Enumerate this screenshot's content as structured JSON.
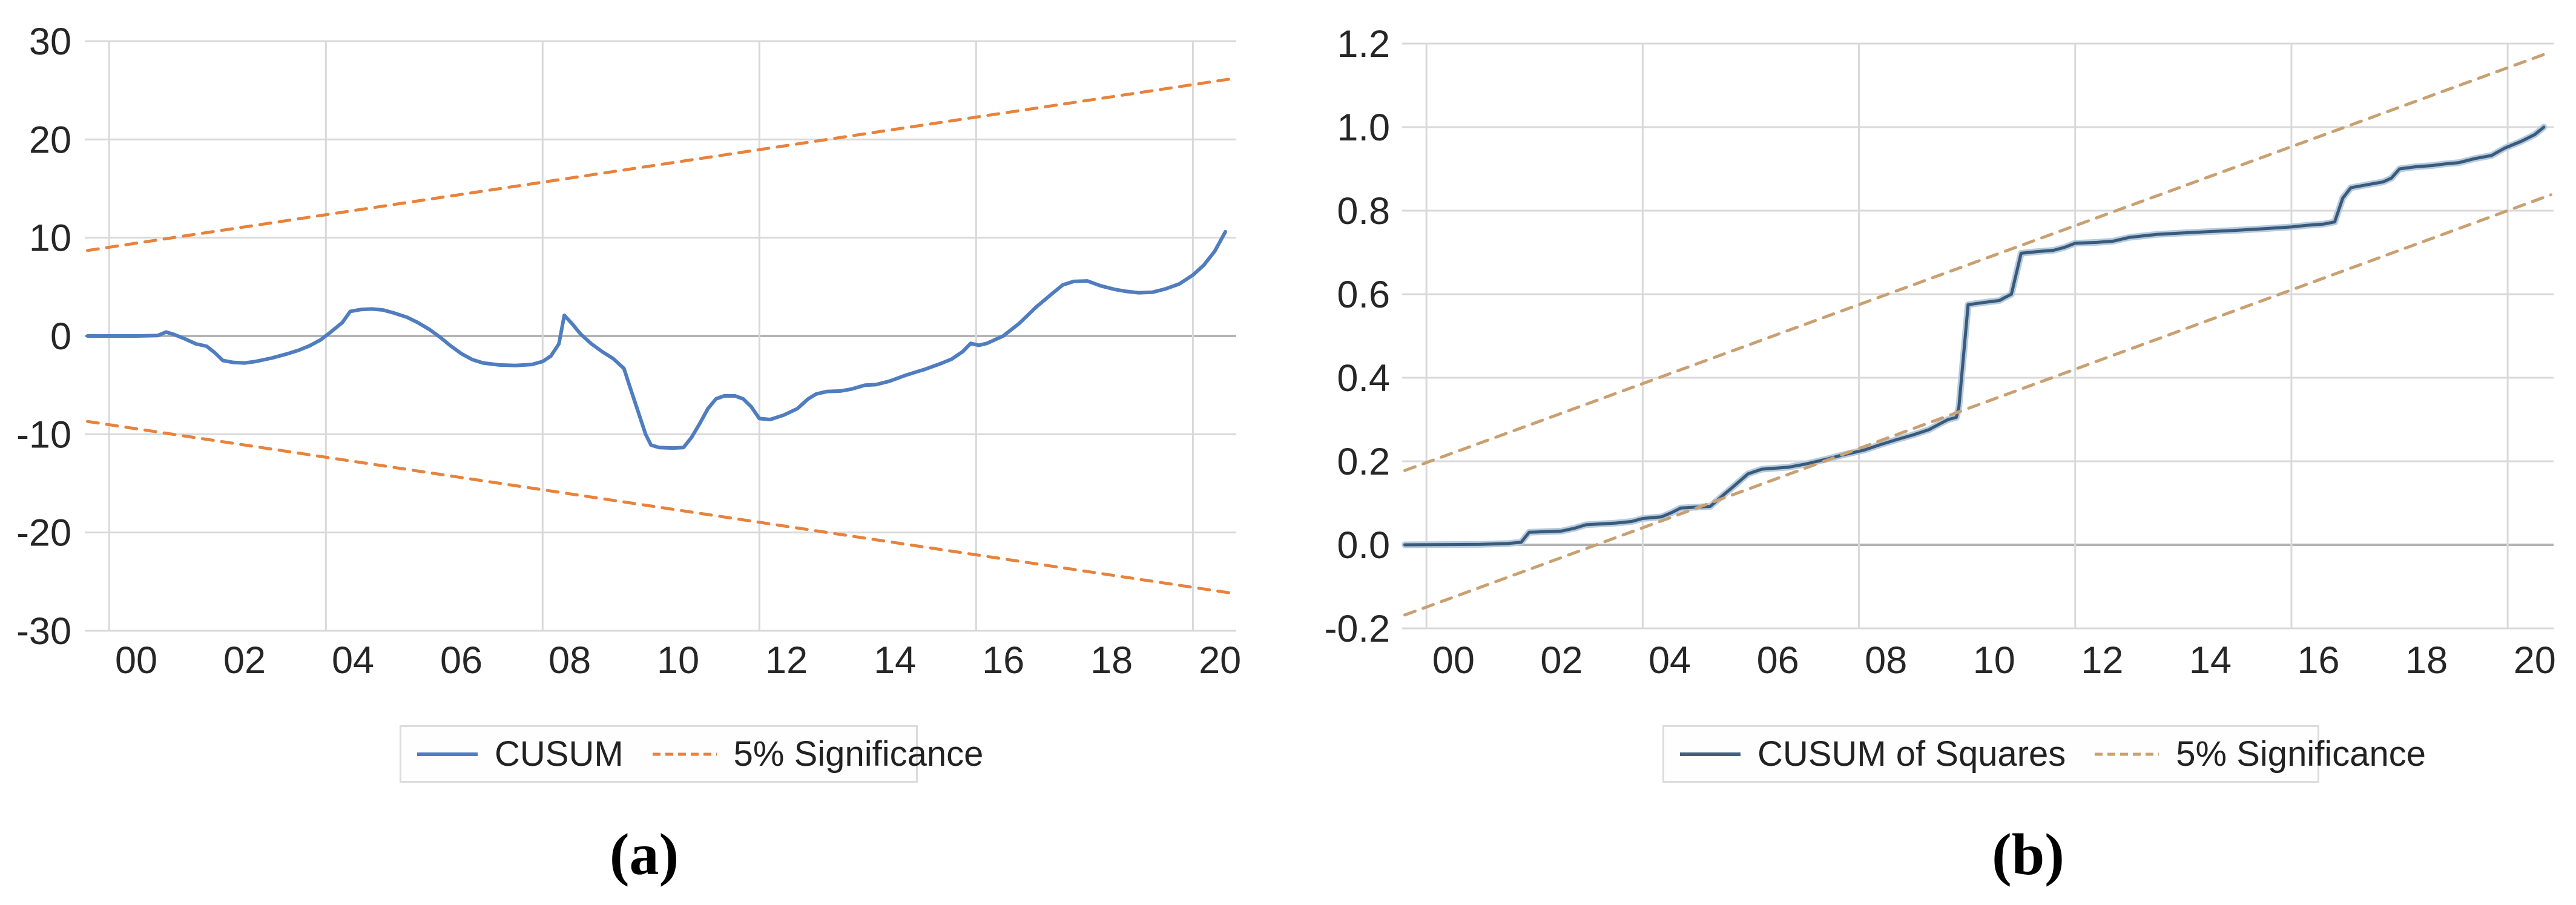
{
  "chart_data": [
    {
      "type": "line",
      "title": "",
      "caption": "(a)",
      "x_axis": {
        "range": [
          -0.95,
          20.3
        ],
        "tick_labels": [
          "00",
          "02",
          "04",
          "06",
          "08",
          "10",
          "12",
          "14",
          "16",
          "18",
          "20"
        ],
        "tick_values": [
          0,
          2,
          4,
          6,
          8,
          10,
          12,
          14,
          16,
          18,
          20
        ],
        "gridline_values": [
          -0.5,
          3.5,
          7.5,
          11.5,
          15.5,
          19.5
        ]
      },
      "y_axis": {
        "range": [
          -30,
          30
        ],
        "tick_labels": [
          "30",
          "20",
          "10",
          "0",
          "-10",
          "-20",
          "-30"
        ],
        "tick_values": [
          30,
          20,
          10,
          0,
          -10,
          -20,
          -30
        ],
        "zero_value": 0
      },
      "grid": true,
      "legend_position": "bottom",
      "legend": {
        "items": [
          {
            "label": "CUSUM",
            "swatch": "solid",
            "color": "#4f7dbf"
          },
          {
            "label": "5% Significance",
            "swatch": "dashed",
            "color": "#e8823c"
          }
        ]
      },
      "series": [
        {
          "name": "CUSUM",
          "style": "solid",
          "color": "#4f7dbf",
          "width": 6,
          "points": [
            [
              -0.9,
              0
            ],
            [
              0,
              0
            ],
            [
              0.4,
              0.05
            ],
            [
              0.55,
              0.4
            ],
            [
              0.7,
              0.15
            ],
            [
              0.9,
              -0.3
            ],
            [
              1.1,
              -0.8
            ],
            [
              1.3,
              -1.05
            ],
            [
              1.45,
              -1.7
            ],
            [
              1.6,
              -2.5
            ],
            [
              1.8,
              -2.7
            ],
            [
              2.0,
              -2.75
            ],
            [
              2.2,
              -2.6
            ],
            [
              2.5,
              -2.25
            ],
            [
              2.8,
              -1.8
            ],
            [
              3.0,
              -1.45
            ],
            [
              3.2,
              -1.0
            ],
            [
              3.4,
              -0.4
            ],
            [
              3.6,
              0.45
            ],
            [
              3.8,
              1.35
            ],
            [
              3.95,
              2.5
            ],
            [
              4.15,
              2.7
            ],
            [
              4.35,
              2.75
            ],
            [
              4.55,
              2.65
            ],
            [
              4.75,
              2.35
            ],
            [
              5.0,
              1.9
            ],
            [
              5.2,
              1.35
            ],
            [
              5.4,
              0.7
            ],
            [
              5.6,
              -0.1
            ],
            [
              5.8,
              -1.0
            ],
            [
              6.0,
              -1.8
            ],
            [
              6.2,
              -2.4
            ],
            [
              6.4,
              -2.75
            ],
            [
              6.7,
              -2.95
            ],
            [
              7.0,
              -3.0
            ],
            [
              7.3,
              -2.9
            ],
            [
              7.5,
              -2.6
            ],
            [
              7.65,
              -2.05
            ],
            [
              7.8,
              -0.8
            ],
            [
              7.9,
              2.1
            ],
            [
              8.05,
              1.2
            ],
            [
              8.2,
              0.2
            ],
            [
              8.4,
              -0.8
            ],
            [
              8.6,
              -1.6
            ],
            [
              8.8,
              -2.3
            ],
            [
              9.0,
              -3.3
            ],
            [
              9.1,
              -5.0
            ],
            [
              9.25,
              -7.5
            ],
            [
              9.4,
              -10.0
            ],
            [
              9.5,
              -11.1
            ],
            [
              9.65,
              -11.35
            ],
            [
              9.9,
              -11.4
            ],
            [
              10.1,
              -11.35
            ],
            [
              10.25,
              -10.3
            ],
            [
              10.4,
              -8.9
            ],
            [
              10.55,
              -7.4
            ],
            [
              10.7,
              -6.4
            ],
            [
              10.85,
              -6.1
            ],
            [
              11.05,
              -6.1
            ],
            [
              11.2,
              -6.4
            ],
            [
              11.35,
              -7.2
            ],
            [
              11.5,
              -8.4
            ],
            [
              11.7,
              -8.5
            ],
            [
              11.95,
              -8.05
            ],
            [
              12.2,
              -7.4
            ],
            [
              12.4,
              -6.4
            ],
            [
              12.55,
              -5.9
            ],
            [
              12.75,
              -5.65
            ],
            [
              13.0,
              -5.6
            ],
            [
              13.2,
              -5.4
            ],
            [
              13.45,
              -5.0
            ],
            [
              13.65,
              -4.95
            ],
            [
              13.9,
              -4.6
            ],
            [
              14.2,
              -4.0
            ],
            [
              14.55,
              -3.4
            ],
            [
              14.85,
              -2.8
            ],
            [
              15.05,
              -2.35
            ],
            [
              15.25,
              -1.6
            ],
            [
              15.4,
              -0.75
            ],
            [
              15.55,
              -0.95
            ],
            [
              15.7,
              -0.75
            ],
            [
              16.0,
              0.0
            ],
            [
              16.3,
              1.3
            ],
            [
              16.6,
              2.9
            ],
            [
              16.9,
              4.3
            ],
            [
              17.1,
              5.2
            ],
            [
              17.3,
              5.55
            ],
            [
              17.55,
              5.6
            ],
            [
              17.8,
              5.1
            ],
            [
              18.05,
              4.75
            ],
            [
              18.25,
              4.55
            ],
            [
              18.5,
              4.4
            ],
            [
              18.75,
              4.45
            ],
            [
              19.0,
              4.8
            ],
            [
              19.25,
              5.3
            ],
            [
              19.5,
              6.2
            ],
            [
              19.7,
              7.2
            ],
            [
              19.9,
              8.6
            ],
            [
              20.1,
              10.6
            ]
          ]
        },
        {
          "name": "5% Significance upper",
          "style": "dashed",
          "color": "#e8823c",
          "width": 5,
          "points": [
            [
              -0.9,
              8.7
            ],
            [
              20.25,
              26.2
            ]
          ]
        },
        {
          "name": "5% Significance lower",
          "style": "dashed",
          "color": "#e8823c",
          "width": 5,
          "points": [
            [
              -0.9,
              -8.7
            ],
            [
              20.25,
              -26.2
            ]
          ]
        }
      ]
    },
    {
      "type": "line",
      "title": "",
      "caption": "(b)",
      "x_axis": {
        "range": [
          -0.95,
          20.35
        ],
        "tick_labels": [
          "00",
          "02",
          "04",
          "06",
          "08",
          "10",
          "12",
          "14",
          "16",
          "18",
          "20"
        ],
        "tick_values": [
          0,
          2,
          4,
          6,
          8,
          10,
          12,
          14,
          16,
          18,
          20
        ],
        "gridline_values": [
          -0.5,
          3.5,
          7.5,
          11.5,
          15.5,
          19.5
        ]
      },
      "y_axis": {
        "range": [
          -0.2,
          1.2
        ],
        "tick_labels": [
          "1.2",
          "1.0",
          "0.8",
          "0.6",
          "0.4",
          "0.2",
          "0.0",
          "-0.2"
        ],
        "tick_values": [
          1.2,
          1.0,
          0.8,
          0.6,
          0.4,
          0.2,
          0.0,
          -0.2
        ],
        "zero_value": 0
      },
      "grid": true,
      "legend_position": "bottom",
      "legend": {
        "items": [
          {
            "label": "CUSUM of Squares",
            "swatch": "solid",
            "color": "#42617f"
          },
          {
            "label": "5% Significance",
            "swatch": "dashed",
            "color": "#c9a071"
          }
        ]
      },
      "series": [
        {
          "name": "CUSUM of Squares",
          "style": "solid",
          "color": "#3a5a7a",
          "width": 5,
          "halo": "#b6cbe0",
          "points": [
            [
              -0.9,
              0.0
            ],
            [
              0.5,
              0.001
            ],
            [
              1.0,
              0.003
            ],
            [
              1.25,
              0.006
            ],
            [
              1.4,
              0.03
            ],
            [
              2.0,
              0.033
            ],
            [
              2.25,
              0.04
            ],
            [
              2.45,
              0.048
            ],
            [
              3.0,
              0.052
            ],
            [
              3.3,
              0.056
            ],
            [
              3.5,
              0.063
            ],
            [
              3.85,
              0.067
            ],
            [
              4.05,
              0.078
            ],
            [
              4.2,
              0.088
            ],
            [
              4.75,
              0.092
            ],
            [
              5.0,
              0.12
            ],
            [
              5.2,
              0.142
            ],
            [
              5.45,
              0.17
            ],
            [
              5.7,
              0.181
            ],
            [
              6.2,
              0.186
            ],
            [
              6.5,
              0.193
            ],
            [
              6.9,
              0.205
            ],
            [
              7.2,
              0.215
            ],
            [
              7.6,
              0.227
            ],
            [
              7.9,
              0.24
            ],
            [
              8.2,
              0.252
            ],
            [
              8.5,
              0.263
            ],
            [
              8.8,
              0.276
            ],
            [
              9.0,
              0.29
            ],
            [
              9.15,
              0.3
            ],
            [
              9.3,
              0.305
            ],
            [
              9.35,
              0.33
            ],
            [
              9.52,
              0.575
            ],
            [
              9.8,
              0.58
            ],
            [
              10.1,
              0.585
            ],
            [
              10.2,
              0.592
            ],
            [
              10.32,
              0.6
            ],
            [
              10.5,
              0.698
            ],
            [
              10.8,
              0.702
            ],
            [
              11.1,
              0.705
            ],
            [
              11.3,
              0.712
            ],
            [
              11.5,
              0.722
            ],
            [
              11.9,
              0.724
            ],
            [
              12.2,
              0.727
            ],
            [
              12.5,
              0.736
            ],
            [
              13.0,
              0.743
            ],
            [
              13.4,
              0.746
            ],
            [
              14.0,
              0.75
            ],
            [
              14.5,
              0.753
            ],
            [
              15.0,
              0.757
            ],
            [
              15.5,
              0.761
            ],
            [
              15.8,
              0.765
            ],
            [
              16.1,
              0.768
            ],
            [
              16.3,
              0.773
            ],
            [
              16.45,
              0.83
            ],
            [
              16.6,
              0.855
            ],
            [
              16.9,
              0.862
            ],
            [
              17.2,
              0.869
            ],
            [
              17.35,
              0.878
            ],
            [
              17.5,
              0.9
            ],
            [
              17.8,
              0.905
            ],
            [
              18.1,
              0.908
            ],
            [
              18.35,
              0.912
            ],
            [
              18.6,
              0.915
            ],
            [
              18.9,
              0.925
            ],
            [
              19.2,
              0.932
            ],
            [
              19.45,
              0.95
            ],
            [
              19.75,
              0.966
            ],
            [
              20.0,
              0.982
            ],
            [
              20.17,
              1.0
            ]
          ]
        },
        {
          "name": "5% Significance upper",
          "style": "dashed",
          "color": "#c9a071",
          "width": 5,
          "points": [
            [
              -0.9,
              0.178
            ],
            [
              20.3,
              1.18
            ]
          ]
        },
        {
          "name": "5% Significance lower",
          "style": "dashed",
          "color": "#c9a071",
          "width": 5,
          "points": [
            [
              -0.9,
              -0.168
            ],
            [
              20.3,
              0.838
            ]
          ]
        }
      ]
    }
  ]
}
